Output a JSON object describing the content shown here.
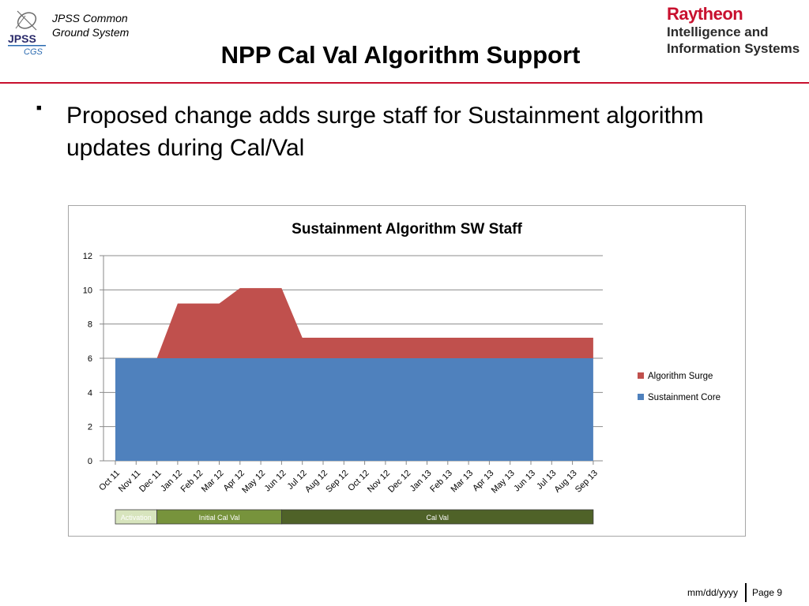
{
  "header": {
    "org_line1": "JPSS Common",
    "org_line2": "Ground System",
    "logo_text_top": "JPSS",
    "logo_text_bottom": "CGS",
    "title": "NPP Cal Val Algorithm Support",
    "brand_name": "Raytheon",
    "brand_line2": "Intelligence and",
    "brand_line3": "Information Systems"
  },
  "bullets": [
    "Proposed change adds surge staff for Sustainment algorithm updates during Cal/Val"
  ],
  "chart_data": {
    "type": "area",
    "stacked": true,
    "title": "Sustainment Algorithm SW Staff",
    "categories": [
      "Oct 11",
      "Nov 11",
      "Dec 11",
      "Jan 12",
      "Feb 12",
      "Mar 12",
      "Apr 12",
      "May 12",
      "Jun 12",
      "Jul 12",
      "Aug 12",
      "Sep 12",
      "Oct 12",
      "Nov 12",
      "Dec 12",
      "Jan 13",
      "Feb 13",
      "Mar 13",
      "Apr 13",
      "May 13",
      "Jun 13",
      "Jul 13",
      "Aug 13",
      "Sep 13"
    ],
    "series": [
      {
        "name": "Sustainment Core",
        "color": "#4f81bd",
        "values": [
          6,
          6,
          6,
          6,
          6,
          6,
          6,
          6,
          6,
          6,
          6,
          6,
          6,
          6,
          6,
          6,
          6,
          6,
          6,
          6,
          6,
          6,
          6,
          6
        ]
      },
      {
        "name": "Algorithm Surge",
        "color": "#c0504d",
        "values": [
          0,
          0,
          0,
          3.2,
          3.2,
          3.2,
          4.1,
          4.1,
          4.1,
          1.2,
          1.2,
          1.2,
          1.2,
          1.2,
          1.2,
          1.2,
          1.2,
          1.2,
          1.2,
          1.2,
          1.2,
          1.2,
          1.2,
          1.2
        ]
      }
    ],
    "ylim": [
      0,
      12
    ],
    "yticks": [
      0,
      2,
      4,
      6,
      8,
      10,
      12
    ],
    "grid": true,
    "legend": "right",
    "legend_order": [
      "Algorithm Surge",
      "Sustainment Core"
    ],
    "phases": [
      {
        "label": "Activation",
        "start": "Oct 11",
        "end": "Dec 11",
        "color": "#d7e4bd",
        "text_color": "#ffffff"
      },
      {
        "label": "Initial Cal Val",
        "start": "Dec 11",
        "end": "Jun 12",
        "color": "#77933c",
        "text_color": "#ffffff"
      },
      {
        "label": "Cal Val",
        "start": "Jun 12",
        "end": "Sep 13",
        "color": "#4f6228",
        "text_color": "#ffffff"
      }
    ]
  },
  "footer": {
    "date": "mm/dd/yyyy",
    "page": "Page 9"
  }
}
